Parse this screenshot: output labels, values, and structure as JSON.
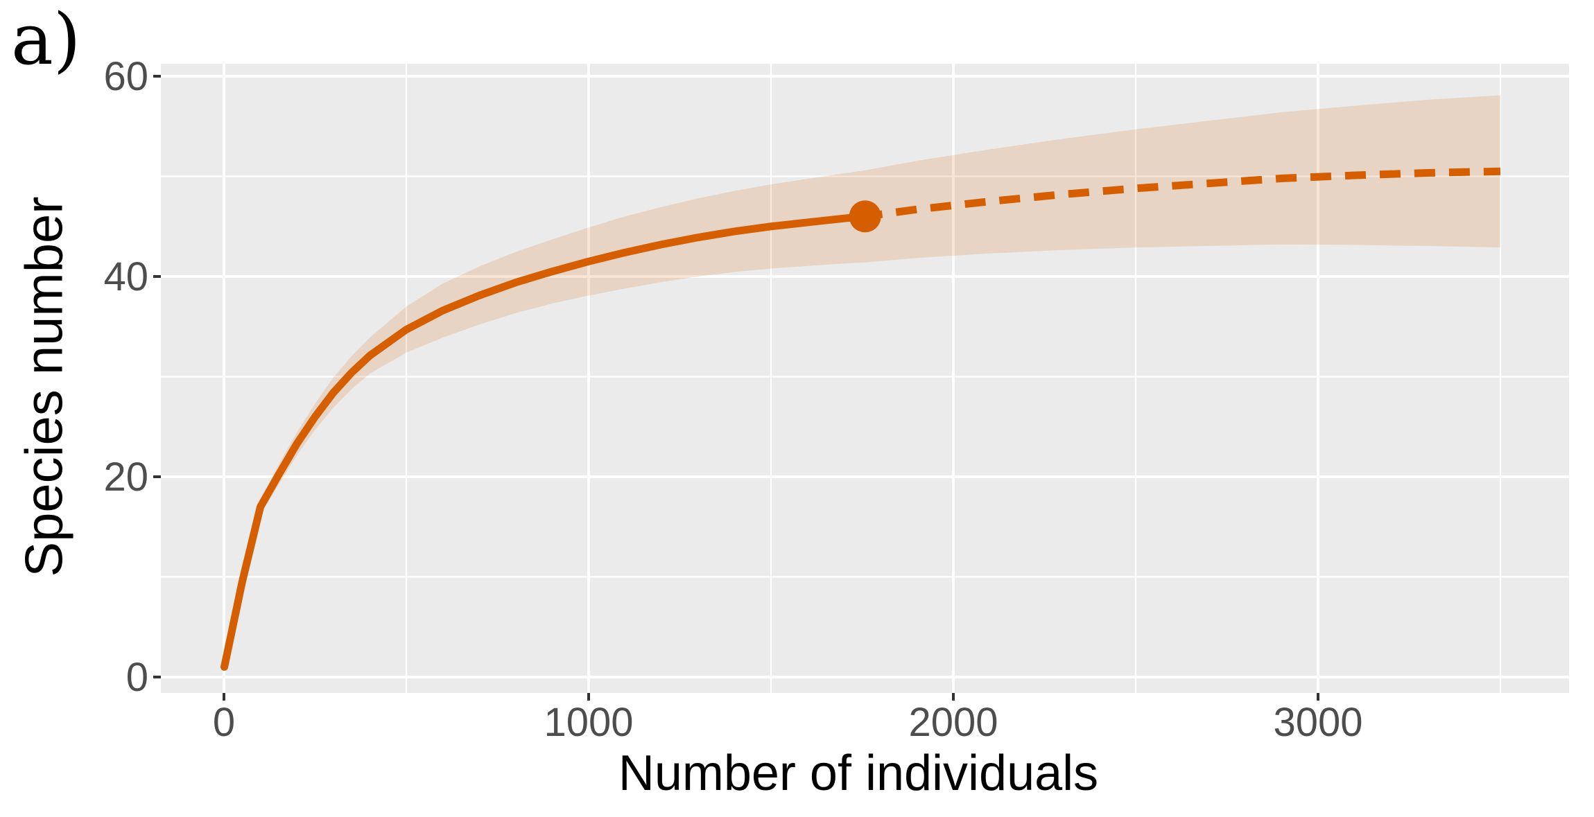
{
  "figure": {
    "panel_label": "a)"
  },
  "chart_data": {
    "type": "line",
    "title": "",
    "xlabel": "Number of individuals",
    "ylabel": "Species number",
    "xlim": [
      -175,
      3675
    ],
    "ylim": [
      -1.6,
      61.4
    ],
    "x_ticks": [
      0,
      1000,
      2000,
      3000
    ],
    "x_tick_labels": [
      "0",
      "1000",
      "2000",
      "3000"
    ],
    "x_minor_ticks": [
      500,
      1500,
      2500,
      3500
    ],
    "y_ticks": [
      0,
      20,
      40,
      60
    ],
    "y_tick_labels": [
      "0",
      "20",
      "40",
      "60"
    ],
    "y_minor_ticks": [
      10,
      30,
      50
    ],
    "grid": true,
    "legend": "none",
    "series": [
      {
        "name": "rarefaction-interpolated",
        "style": "solid",
        "points": [
          [
            1,
            1
          ],
          [
            50,
            9.5
          ],
          [
            100,
            17
          ],
          [
            150,
            20.2
          ],
          [
            200,
            23.3
          ],
          [
            250,
            26
          ],
          [
            300,
            28.4
          ],
          [
            350,
            30.4
          ],
          [
            400,
            32.1
          ],
          [
            500,
            34.7
          ],
          [
            600,
            36.6
          ],
          [
            700,
            38.1
          ],
          [
            800,
            39.4
          ],
          [
            900,
            40.5
          ],
          [
            1000,
            41.5
          ],
          [
            1100,
            42.4
          ],
          [
            1200,
            43.2
          ],
          [
            1300,
            43.9
          ],
          [
            1400,
            44.5
          ],
          [
            1500,
            45
          ],
          [
            1600,
            45.4
          ],
          [
            1700,
            45.8
          ],
          [
            1758,
            46
          ]
        ]
      },
      {
        "name": "rarefaction-extrapolated",
        "style": "dashed",
        "points": [
          [
            1758,
            46
          ],
          [
            1900,
            46.7
          ],
          [
            2100,
            47.5
          ],
          [
            2300,
            48.2
          ],
          [
            2500,
            48.8
          ],
          [
            2700,
            49.3
          ],
          [
            2900,
            49.8
          ],
          [
            3100,
            50.1
          ],
          [
            3300,
            50.35
          ],
          [
            3500,
            50.5
          ]
        ]
      }
    ],
    "observed_point": {
      "x": 1758,
      "y": 46
    },
    "ribbon": {
      "name": "confidence-band",
      "points": [
        [
          1,
          0.9,
          1.1
        ],
        [
          50,
          9,
          10
        ],
        [
          100,
          16.2,
          17.8
        ],
        [
          150,
          19.2,
          21.2
        ],
        [
          200,
          22.15,
          24.45
        ],
        [
          250,
          24.7,
          27.3
        ],
        [
          300,
          26.9,
          29.9
        ],
        [
          350,
          28.75,
          32.05
        ],
        [
          400,
          30.3,
          33.9
        ],
        [
          500,
          32.4,
          37
        ],
        [
          600,
          33.9,
          39.3
        ],
        [
          700,
          35.2,
          41
        ],
        [
          800,
          36.35,
          42.45
        ],
        [
          900,
          37.3,
          43.7
        ],
        [
          1000,
          38.1,
          44.9
        ],
        [
          1100,
          38.8,
          46
        ],
        [
          1200,
          39.45,
          46.95
        ],
        [
          1300,
          40,
          47.8
        ],
        [
          1400,
          40.45,
          48.55
        ],
        [
          1500,
          40.8,
          49.2
        ],
        [
          1600,
          41.05,
          49.75
        ],
        [
          1700,
          41.3,
          50.3
        ],
        [
          1758,
          41.4,
          50.6
        ],
        [
          1900,
          41.85,
          51.55
        ],
        [
          2100,
          42.3,
          52.7
        ],
        [
          2300,
          42.65,
          53.75
        ],
        [
          2500,
          42.9,
          54.7
        ],
        [
          2700,
          43.05,
          55.55
        ],
        [
          2900,
          43.2,
          56.4
        ],
        [
          3100,
          43.15,
          57.05
        ],
        [
          3300,
          43.05,
          57.65
        ],
        [
          3500,
          42.9,
          58.1
        ]
      ]
    },
    "colors": {
      "line": "#d55e00",
      "point": "#d55e00",
      "ribbon_fill": "rgba(213,94,0,0.16)",
      "panel_background": "#ebebeb",
      "gridline": "#ffffff",
      "tick_mark": "#333333",
      "tick_label": "#4d4d4d",
      "axis_title": "#000000"
    }
  }
}
